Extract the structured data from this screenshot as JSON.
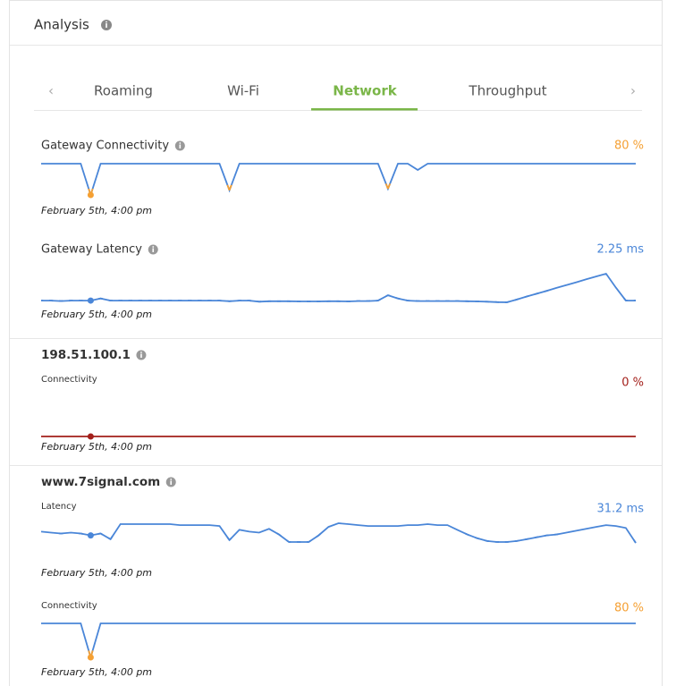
{
  "header": {
    "title": "Analysis"
  },
  "tabs": {
    "items": [
      "Roaming",
      "Wi-Fi",
      "Network",
      "Throughput"
    ],
    "active": 2
  },
  "sections": [
    {
      "title": "Gateway Connectivity",
      "charts": [
        {
          "value_label": "80 %",
          "value_color": "#f5a033",
          "color": "#4a86d8",
          "highlight": 5,
          "timestamp": "February 5th, 4:00 pm",
          "values": [
            100,
            100,
            100,
            100,
            100,
            0,
            100,
            100,
            100,
            100,
            100,
            100,
            100,
            100,
            100,
            100,
            100,
            100,
            100,
            15,
            100,
            100,
            100,
            100,
            100,
            100,
            100,
            100,
            100,
            100,
            100,
            100,
            100,
            100,
            100,
            20,
            100,
            100,
            80,
            100,
            100,
            100,
            100,
            100,
            100,
            100,
            100,
            100,
            100,
            100,
            100,
            100,
            100,
            100,
            100,
            100,
            100,
            100,
            100,
            100,
            100
          ]
        }
      ]
    },
    {
      "title": "Gateway Latency",
      "charts": [
        {
          "value_label": "2.25 ms",
          "value_color": "#4a86d8",
          "color": "#4a86d8",
          "highlight": 5,
          "timestamp": "February 5th, 4:00 pm",
          "values": [
            1.0,
            1.0,
            0.98,
            1.0,
            1.0,
            1.0,
            1.1,
            1.0,
            1.0,
            1.0,
            1.0,
            1.0,
            1.0,
            1.0,
            1.0,
            1.0,
            1.0,
            1.0,
            1.0,
            0.97,
            1.0,
            1.0,
            0.95,
            0.97,
            0.97,
            0.97,
            0.96,
            0.96,
            0.96,
            0.97,
            0.97,
            0.96,
            0.98,
            0.98,
            1.0,
            1.25,
            1.1,
            1.0,
            0.98,
            0.98,
            0.98,
            0.98,
            0.98,
            0.97,
            0.96,
            0.95,
            0.93,
            0.92,
            1.05,
            1.19,
            1.32,
            1.45,
            1.59,
            1.72,
            1.85,
            1.99,
            2.12,
            2.25,
            1.6,
            1.0,
            1.0
          ]
        }
      ]
    },
    {
      "title": "198.51.100.1",
      "charts": [
        {
          "label": "Connectivity",
          "value_label": "0 %",
          "value_color": "#a31f1a",
          "color": "#a31f1a",
          "highlight": 5,
          "timestamp": "February 5th, 4:00 pm",
          "values": [
            0,
            0,
            0,
            0,
            0,
            0,
            0,
            0,
            0,
            0,
            0,
            0,
            0,
            0,
            0,
            0,
            0,
            0,
            0,
            0,
            0,
            0,
            0,
            0,
            0,
            0,
            0,
            0,
            0,
            0,
            0,
            0,
            0,
            0,
            0,
            0,
            0,
            0,
            0,
            0,
            0,
            0,
            0,
            0,
            0,
            0,
            0,
            0,
            0,
            0,
            0,
            0,
            0,
            0,
            0,
            0,
            0,
            0,
            0,
            0,
            0
          ]
        }
      ]
    },
    {
      "title": "www.7signal.com",
      "charts": [
        {
          "label": "Latency",
          "value_label": "31.2 ms",
          "value_color": "#4a86d8",
          "color": "#4a86d8",
          "highlight": 5,
          "timestamp": "February 5th, 4:00 pm",
          "values": [
            30.9,
            30.0,
            29.1,
            30.0,
            29.1,
            27.3,
            29.1,
            23.6,
            38.2,
            38.2,
            38.2,
            38.2,
            38.2,
            38.2,
            37.3,
            37.3,
            37.3,
            37.3,
            36.4,
            22.7,
            32.7,
            30.9,
            30.0,
            33.6,
            28.2,
            20.9,
            20.9,
            20.9,
            27.3,
            35.5,
            39.1,
            38.2,
            37.3,
            36.4,
            36.4,
            36.4,
            36.4,
            37.3,
            37.3,
            38.2,
            37.3,
            37.3,
            32.7,
            28.2,
            24.5,
            21.8,
            20.9,
            20.9,
            21.8,
            23.6,
            25.5,
            27.3,
            28.2,
            30.0,
            31.8,
            33.6,
            35.5,
            37.3,
            36.4,
            34.5,
            20.0
          ]
        },
        {
          "label": "Connectivity",
          "value_label": "80 %",
          "value_color": "#f5a033",
          "color": "#4a86d8",
          "highlight": 5,
          "timestamp": "February 5th, 4:00 pm",
          "values": [
            100,
            100,
            100,
            100,
            100,
            0,
            100,
            100,
            100,
            100,
            100,
            100,
            100,
            100,
            100,
            100,
            100,
            100,
            100,
            100,
            100,
            100,
            100,
            100,
            100,
            100,
            100,
            100,
            100,
            100,
            100,
            100,
            100,
            100,
            100,
            100,
            100,
            100,
            100,
            100,
            100,
            100,
            100,
            100,
            100,
            100,
            100,
            100,
            100,
            100,
            100,
            100,
            100,
            100,
            100,
            100,
            100,
            100,
            100,
            100,
            100
          ]
        }
      ]
    }
  ]
}
